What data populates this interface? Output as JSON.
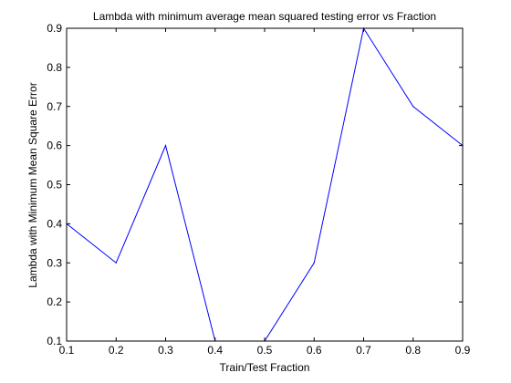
{
  "chart_data": {
    "type": "line",
    "title": "Lambda with minimum average mean squared testing error vs Fraction",
    "xlabel": "Train/Test Fraction",
    "ylabel": "Lambda with Minimum Mean Square Error",
    "xlim": [
      0.1,
      0.9
    ],
    "ylim": [
      0.1,
      0.9
    ],
    "xticks": [
      0.1,
      0.2,
      0.3,
      0.4,
      0.5,
      0.6,
      0.7,
      0.8,
      0.9
    ],
    "yticks": [
      0.1,
      0.2,
      0.3,
      0.4,
      0.5,
      0.6,
      0.7,
      0.8,
      0.9
    ],
    "x_tick_labels": [
      "0.1",
      "0.2",
      "0.3",
      "0.4",
      "0.5",
      "0.6",
      "0.7",
      "0.8",
      "0.9"
    ],
    "y_tick_labels": [
      "0.1",
      "0.2",
      "0.3",
      "0.4",
      "0.5",
      "0.6",
      "0.7",
      "0.8",
      "0.9"
    ],
    "grid": false,
    "series": [
      {
        "x": [
          0.1,
          0.2,
          0.3,
          0.4,
          0.5,
          0.6,
          0.7,
          0.8,
          0.9
        ],
        "values": [
          0.4,
          0.3,
          0.6,
          0.1,
          0.1,
          0.3,
          0.9,
          0.7,
          0.6
        ],
        "color": "#0000ff"
      }
    ]
  }
}
